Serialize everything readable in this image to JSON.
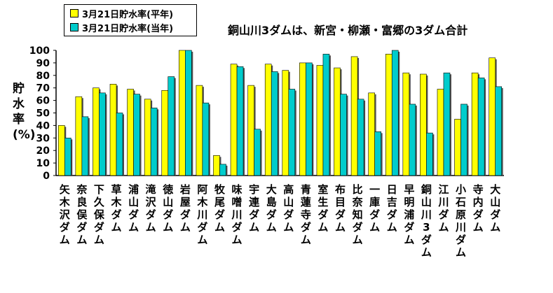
{
  "chart_data": {
    "type": "bar",
    "title": "銅山川3ダムは、新宮・柳瀬・富郷の3ダム合計",
    "ylabel": "貯水率(%)",
    "xlabel": "",
    "ylim": [
      0,
      100
    ],
    "yticks": [
      0,
      10,
      20,
      30,
      40,
      50,
      60,
      70,
      80,
      90,
      100
    ],
    "grid": false,
    "legend_position": "top-left",
    "categories": [
      "矢木沢ダム",
      "奈良俣ダム",
      "下久保ダム",
      "草木ダム",
      "浦山ダム",
      "滝沢ダム",
      "徳山ダム",
      "岩屋ダム",
      "阿木川ダム",
      "牧尾ダム",
      "味噌川ダム",
      "宇連ダム",
      "大島ダム",
      "高山ダム",
      "青蓮寺ダム",
      "室生ダム",
      "布目ダム",
      "比奈知ダム",
      "一庫ダム",
      "日吉ダム",
      "早明浦ダム",
      "銅山川3ダム",
      "江川ダム",
      "小石原川ダム",
      "寺内ダム",
      "大山ダム"
    ],
    "series": [
      {
        "name": "3月21日貯水率(平年)",
        "color": "#ffff00",
        "values": [
          40,
          63,
          70,
          73,
          69,
          61,
          68,
          100,
          72,
          16,
          89,
          72,
          89,
          84,
          90,
          88,
          86,
          95,
          66,
          97,
          82,
          81,
          69,
          45,
          82,
          94
        ]
      },
      {
        "name": "3月21日貯水率(当年)",
        "color": "#00cccc",
        "values": [
          30,
          47,
          66,
          50,
          65,
          54,
          79,
          100,
          58,
          9,
          87,
          37,
          83,
          69,
          90,
          97,
          65,
          61,
          35,
          100,
          57,
          34,
          82,
          57,
          78,
          71
        ]
      }
    ]
  }
}
